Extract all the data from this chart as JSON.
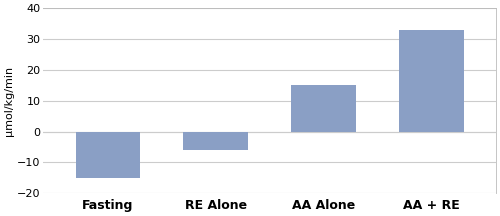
{
  "categories": [
    "Fasting",
    "RE Alone",
    "AA Alone",
    "AA + RE"
  ],
  "values": [
    -15,
    -6,
    15,
    33
  ],
  "bar_color": "#8A9FC5",
  "ylabel": "μmol/kg/min",
  "ylim": [
    -20,
    40
  ],
  "yticks": [
    -20,
    -10,
    0,
    10,
    20,
    30,
    40
  ],
  "bar_width": 0.6,
  "background_color": "#ffffff",
  "grid_color": "#cccccc",
  "ylabel_fontsize": 8,
  "tick_fontsize": 8,
  "xtick_fontsize": 9,
  "border_color": "#bbbbbb"
}
